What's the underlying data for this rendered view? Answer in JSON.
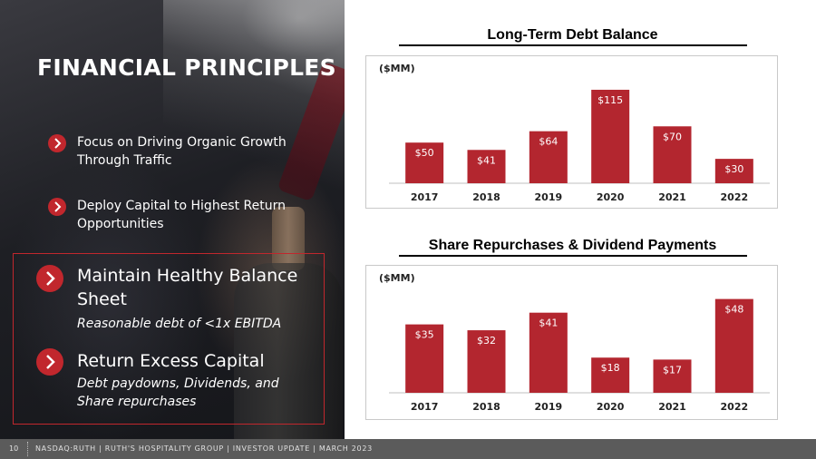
{
  "slide": {
    "title": "FINANCIAL PRINCIPLES",
    "principles": [
      "Focus on Driving Organic Growth Through Traffic",
      "Deploy Capital to Highest Return Opportunities"
    ],
    "highlights": [
      {
        "heading": "Maintain Healthy Balance Sheet",
        "detail": "Reasonable debt of <1x EBITDA"
      },
      {
        "heading": "Return Excess Capital",
        "detail": "Debt paydowns, Dividends, and Share repurchases"
      }
    ],
    "accent_color": "#c1272d",
    "bar_color": "#b3262f"
  },
  "footer": {
    "page_number": "10",
    "text": "NASDAQ:RUTH  |  RUTH'S HOSPITALITY GROUP  |  INVESTOR UPDATE  |  MARCH 2023"
  },
  "chart_data": [
    {
      "type": "bar",
      "title": "Long-Term Debt Balance",
      "unit_label": "($MM)",
      "categories": [
        "2017",
        "2018",
        "2019",
        "2020",
        "2021",
        "2022"
      ],
      "values": [
        50,
        41,
        64,
        115,
        70,
        30
      ],
      "data_labels": [
        "$50",
        "$41",
        "$64",
        "$115",
        "$70",
        "$30"
      ],
      "ylim": [
        0,
        125
      ],
      "grid": false
    },
    {
      "type": "bar",
      "title": "Share Repurchases & Dividend Payments",
      "unit_label": "($MM)",
      "categories": [
        "2017",
        "2018",
        "2019",
        "2020",
        "2021",
        "2022"
      ],
      "values": [
        35,
        32,
        41,
        18,
        17,
        48
      ],
      "data_labels": [
        "$35",
        "$32",
        "$41",
        "$18",
        "$17",
        "$48"
      ],
      "ylim": [
        0,
        52
      ],
      "grid": false
    }
  ]
}
